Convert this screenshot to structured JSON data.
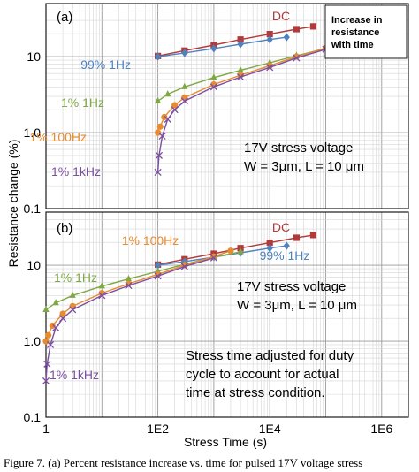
{
  "figure": {
    "caption": "Figure 7. (a) Percent resistance increase vs. time for pulsed 17V voltage stress"
  },
  "chart_data": [
    {
      "type": "line",
      "panel_label": "(a)",
      "xscale": "log",
      "yscale": "log",
      "xlim": [
        1,
        3000000
      ],
      "ylim": [
        0.1,
        50
      ],
      "ylabel": "Resistance change (%)",
      "xlabel": "",
      "yticks": [
        "0.1",
        "1.0",
        "10"
      ],
      "grid": true,
      "legend_box": "Increase in resistance with time",
      "annotations": [
        "17V stress voltage",
        "W = 3μm, L = 10 μm"
      ],
      "series": [
        {
          "name": "DC",
          "color": "#b23a3a",
          "marker": "square",
          "x": [
            100,
            300,
            1000,
            3000,
            10000,
            30000,
            60000
          ],
          "y": [
            10.2,
            12.0,
            14.2,
            16.8,
            19.8,
            23.0,
            25.0
          ]
        },
        {
          "name": "99% 1Hz",
          "color": "#4f81bd",
          "marker": "diamond",
          "x": [
            100,
            300,
            1000,
            3000,
            10000,
            20000
          ],
          "y": [
            10.0,
            11.2,
            12.8,
            14.6,
            16.8,
            18.0
          ]
        },
        {
          "name": "1% 1Hz",
          "color": "#7fa843",
          "marker": "triangle",
          "x": [
            100,
            150,
            300,
            1000,
            3000,
            10000,
            30000,
            100000,
            300000
          ],
          "y": [
            2.6,
            3.2,
            4.0,
            5.3,
            6.6,
            8.3,
            10.3,
            12.8,
            15.0
          ]
        },
        {
          "name": "1% 100Hz",
          "color": "#e88b2e",
          "marker": "circle",
          "x": [
            100,
            110,
            130,
            200,
            300,
            1000,
            3000,
            10000,
            30000,
            100000,
            200000
          ],
          "y": [
            1.0,
            1.2,
            1.6,
            2.3,
            2.9,
            4.3,
            5.7,
            7.6,
            10.0,
            13.0,
            15.5
          ]
        },
        {
          "name": "1% 1kHz",
          "color": "#7b4ea0",
          "marker": "x",
          "x": [
            100,
            105,
            120,
            150,
            200,
            300,
            1000,
            3000,
            10000,
            30000,
            100000
          ],
          "y": [
            0.3,
            0.5,
            0.9,
            1.5,
            2.0,
            2.6,
            4.0,
            5.4,
            7.2,
            9.6,
            12.5
          ]
        }
      ]
    },
    {
      "type": "line",
      "panel_label": "(b)",
      "xscale": "log",
      "yscale": "log",
      "xlim": [
        1,
        3000000
      ],
      "ylim": [
        0.1,
        50
      ],
      "ylabel": "Resistance change (%)",
      "xlabel": "Stress Time (s)",
      "xticks": [
        "1",
        "1E2",
        "1E4",
        "1E6"
      ],
      "yticks": [
        "0.1",
        "1.0",
        "10"
      ],
      "grid": true,
      "annotations": [
        "17V stress voltage",
        "W = 3μm, L = 10 μm",
        "Stress time adjusted for duty cycle to account  for actual time at stress condition."
      ],
      "series": [
        {
          "name": "DC",
          "color": "#b23a3a",
          "marker": "square",
          "x": [
            100,
            300,
            1000,
            3000,
            10000,
            30000,
            60000
          ],
          "y": [
            10.2,
            12.0,
            14.2,
            16.8,
            19.8,
            23.0,
            25.0
          ]
        },
        {
          "name": "99% 1Hz",
          "color": "#4f81bd",
          "marker": "diamond",
          "x": [
            100,
            300,
            1000,
            3000,
            10000,
            20000
          ],
          "y": [
            10.0,
            11.2,
            12.8,
            14.6,
            16.8,
            18.0
          ]
        },
        {
          "name": "1% 1Hz",
          "color": "#7fa843",
          "marker": "triangle",
          "x": [
            1,
            1.5,
            3,
            10,
            30,
            100,
            300,
            1000,
            3000
          ],
          "y": [
            2.6,
            3.2,
            4.0,
            5.3,
            6.6,
            8.3,
            10.3,
            12.8,
            15.0
          ]
        },
        {
          "name": "1% 100Hz",
          "color": "#e88b2e",
          "marker": "circle",
          "x": [
            1,
            1.1,
            1.3,
            2,
            3,
            10,
            30,
            100,
            300,
            1000,
            2000
          ],
          "y": [
            1.0,
            1.2,
            1.6,
            2.3,
            2.9,
            4.3,
            5.7,
            7.6,
            10.0,
            13.0,
            15.5
          ]
        },
        {
          "name": "1% 1kHz",
          "color": "#7b4ea0",
          "marker": "x",
          "x": [
            1,
            1.05,
            1.2,
            1.5,
            2,
            3,
            10,
            30,
            100,
            300,
            1000
          ],
          "y": [
            0.3,
            0.5,
            0.9,
            1.5,
            2.0,
            2.6,
            4.0,
            5.4,
            7.2,
            9.6,
            12.5
          ]
        }
      ]
    }
  ]
}
